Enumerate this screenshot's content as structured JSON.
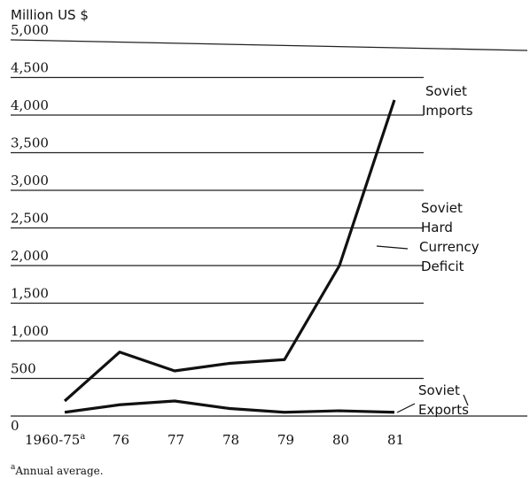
{
  "chart_data": {
    "type": "line",
    "y_axis_label": "Million US $",
    "categories": [
      "1960-75",
      "76",
      "77",
      "78",
      "79",
      "80",
      "81"
    ],
    "footnote_marker": "a",
    "footnote": "Annual average.",
    "series": [
      {
        "color": "#111111",
        "values": [
          200,
          850,
          600,
          700,
          750,
          2000,
          4200
        ]
      },
      {
        "color": "#111111",
        "values": [
          50,
          150,
          200,
          100,
          50,
          70,
          50
        ]
      }
    ],
    "annotations": [
      {
        "lines": [
          "Soviet",
          "Imports"
        ]
      },
      {
        "lines": [
          "Soviet",
          "Hard",
          "Currency",
          "Deficit"
        ]
      },
      {
        "lines": [
          "Soviet",
          "Exports"
        ]
      }
    ],
    "ylim": [
      0,
      5000
    ],
    "yticks": [
      0,
      500,
      {
        "value": 1000,
        "label": "1,000"
      },
      {
        "value": 1500,
        "label": "1,500"
      },
      {
        "value": 2000,
        "label": "2,000"
      },
      {
        "value": 2500,
        "label": "2,500"
      },
      {
        "value": 3000,
        "label": "3,000"
      },
      {
        "value": 3500,
        "label": "3,500"
      },
      {
        "value": 4000,
        "label": "4,000"
      },
      {
        "value": 4500,
        "label": "4,500"
      },
      {
        "value": 5000,
        "label": "5,000"
      }
    ],
    "grid": true
  }
}
